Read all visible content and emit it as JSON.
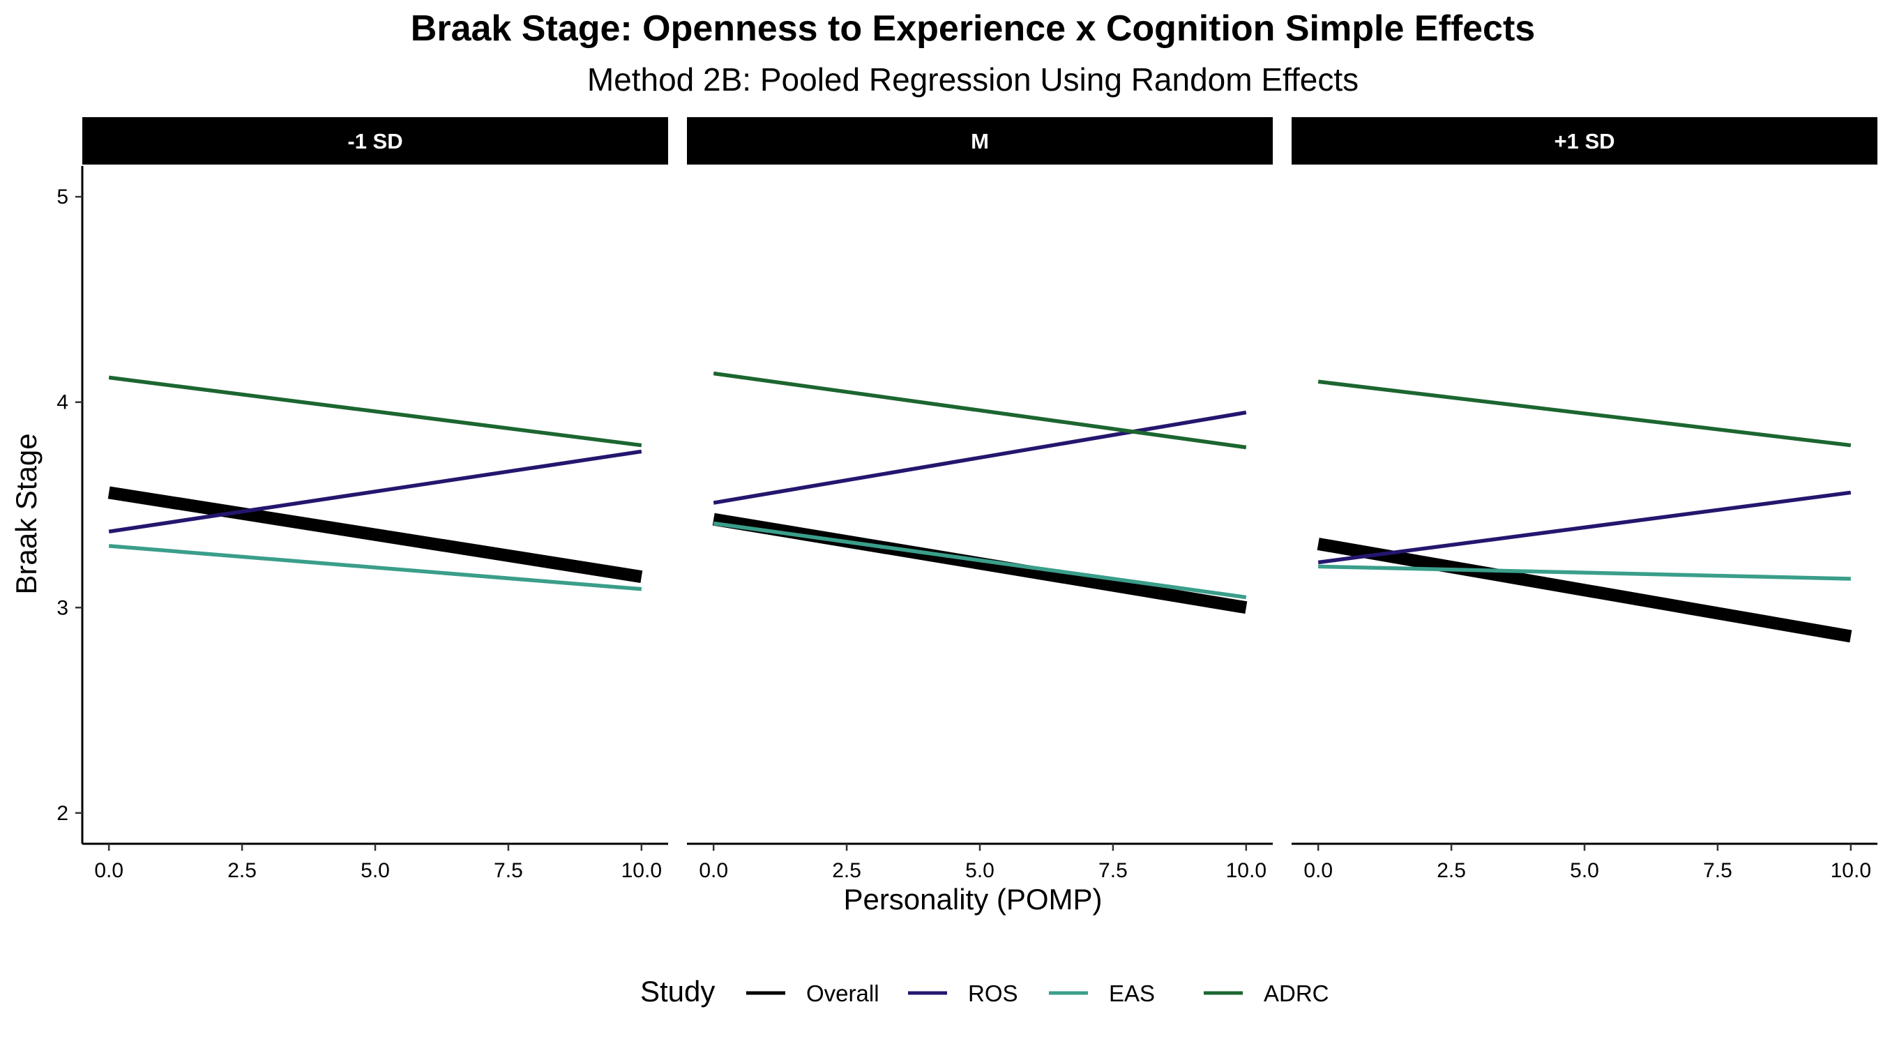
{
  "chart_data": {
    "type": "line",
    "title": "Braak Stage: Openness to Experience x Cognition Simple Effects",
    "subtitle": "Method 2B: Pooled Regression Using Random Effects",
    "xlabel": "Personality (POMP)",
    "ylabel": "Braak Stage",
    "xlim": [
      -0.5,
      10.5
    ],
    "ylim": [
      1.85,
      5.15
    ],
    "x_ticks": [
      0,
      2.5,
      5,
      7.5,
      10
    ],
    "x_tick_labels": [
      "0.0",
      "2.5",
      "5.0",
      "7.5",
      "10.0"
    ],
    "y_ticks": [
      2,
      3,
      4,
      5
    ],
    "y_tick_labels": [
      "2",
      "3",
      "4",
      "5"
    ],
    "grid": false,
    "legend": {
      "title": "Study",
      "position": "bottom",
      "entries": [
        "Overall",
        "ROS",
        "EAS",
        "ADRC"
      ]
    },
    "series_styles": [
      {
        "name": "Overall",
        "color": "#000000",
        "emphasis": "thick"
      },
      {
        "name": "ROS",
        "color": "#24166e",
        "emphasis": "normal"
      },
      {
        "name": "EAS",
        "color": "#3a9e8a",
        "emphasis": "normal"
      },
      {
        "name": "ADRC",
        "color": "#1c6630",
        "emphasis": "normal"
      }
    ],
    "panels": [
      {
        "label": "-1 SD",
        "x": [
          0,
          10
        ],
        "series": [
          {
            "name": "Overall",
            "values": [
              3.56,
              3.15
            ]
          },
          {
            "name": "ROS",
            "values": [
              3.37,
              3.76
            ]
          },
          {
            "name": "EAS",
            "values": [
              3.3,
              3.09
            ]
          },
          {
            "name": "ADRC",
            "values": [
              4.12,
              3.79
            ]
          }
        ]
      },
      {
        "label": "M",
        "x": [
          0,
          10
        ],
        "series": [
          {
            "name": "Overall",
            "values": [
              3.43,
              3.0
            ]
          },
          {
            "name": "ROS",
            "values": [
              3.51,
              3.95
            ]
          },
          {
            "name": "EAS",
            "values": [
              3.41,
              3.05
            ]
          },
          {
            "name": "ADRC",
            "values": [
              4.14,
              3.78
            ]
          }
        ]
      },
      {
        "label": "+1 SD",
        "x": [
          0,
          10
        ],
        "series": [
          {
            "name": "Overall",
            "values": [
              3.31,
              2.86
            ]
          },
          {
            "name": "ROS",
            "values": [
              3.22,
              3.56
            ]
          },
          {
            "name": "EAS",
            "values": [
              3.2,
              3.14
            ]
          },
          {
            "name": "ADRC",
            "values": [
              4.1,
              3.79
            ]
          }
        ]
      }
    ]
  }
}
